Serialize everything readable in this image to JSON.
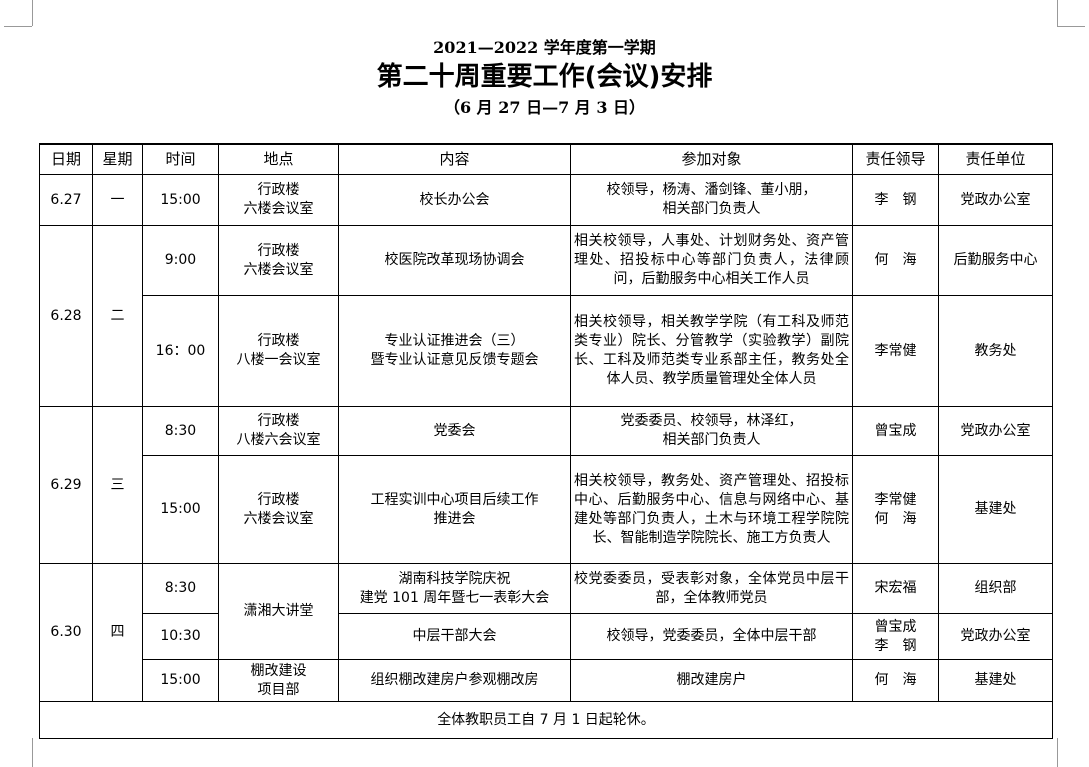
{
  "header": {
    "term": "2021—2022 学年度第一学期",
    "title": "第二十周重要工作(会议)安排",
    "date_range": "（6 月 27 日—7 月 3 日）"
  },
  "table": {
    "columns": [
      "日期",
      "星期",
      "时间",
      "地点",
      "内容",
      "参加对象",
      "责任领导",
      "责任单位"
    ],
    "rows": [
      {
        "date": "6.27",
        "weekday": "一",
        "time": "15:00",
        "place": "行政楼\n六楼会议室",
        "content": "校长办公会",
        "participants": "校领导，杨涛、潘剑锋、董小朋，\n相关部门负责人",
        "leader": "李　钢",
        "unit": "党政办公室"
      },
      {
        "date": "6.28",
        "weekday": "二",
        "time": "9:00",
        "place": "行政楼\n六楼会议室",
        "content": "校医院改革现场协调会",
        "participants": "相关校领导，人事处、计划财务处、资产管理处、招投标中心等部门负责人，法律顾问，后勤服务中心相关工作人员",
        "leader": "何　海",
        "unit": "后勤服务中心"
      },
      {
        "time": "16：00",
        "place": "行政楼\n八楼一会议室",
        "content": "专业认证推进会（三）\n暨专业认证意见反馈专题会",
        "participants": "相关校领导，相关教学学院（有工科及师范类专业）院长、分管教学（实验教学）副院长、工科及师范类专业系部主任，教务处全体人员、教学质量管理处全体人员",
        "leader": "李常健",
        "unit": "教务处"
      },
      {
        "date": "6.29",
        "weekday": "三",
        "time": "8:30",
        "place": "行政楼\n八楼六会议室",
        "content": "党委会",
        "participants": "党委委员、校领导，林泽红，\n相关部门负责人",
        "leader": "曾宝成",
        "unit": "党政办公室"
      },
      {
        "time": "15:00",
        "place": "行政楼\n六楼会议室",
        "content": "工程实训中心项目后续工作\n推进会",
        "participants": "相关校领导，教务处、资产管理处、招投标中心、后勤服务中心、信息与网络中心、基建处等部门负责人，土木与环境工程学院院长、智能制造学院院长、施工方负责人",
        "leader": "李常健\n何　海",
        "unit": "基建处"
      },
      {
        "date": "6.30",
        "weekday": "四",
        "time": "8:30",
        "place": "潇湘大讲堂",
        "content": "湖南科技学院庆祝\n建党 101 周年暨七一表彰大会",
        "participants": "校党委委员，受表彰对象，全体党员中层干部，全体教师党员",
        "leader": "宋宏福",
        "unit": "组织部"
      },
      {
        "time": "10:30",
        "content": "中层干部大会",
        "participants": "校领导，党委委员，全体中层干部",
        "leader": "曾宝成\n李　钢",
        "unit": "党政办公室"
      },
      {
        "time": "15:00",
        "place": "棚改建设\n项目部",
        "content": "组织棚改建房户参观棚改房",
        "participants": "棚改建房户",
        "leader": "何　海",
        "unit": "基建处"
      }
    ],
    "footer_note": "全体教职员工自 7 月 1 日起轮休。"
  }
}
